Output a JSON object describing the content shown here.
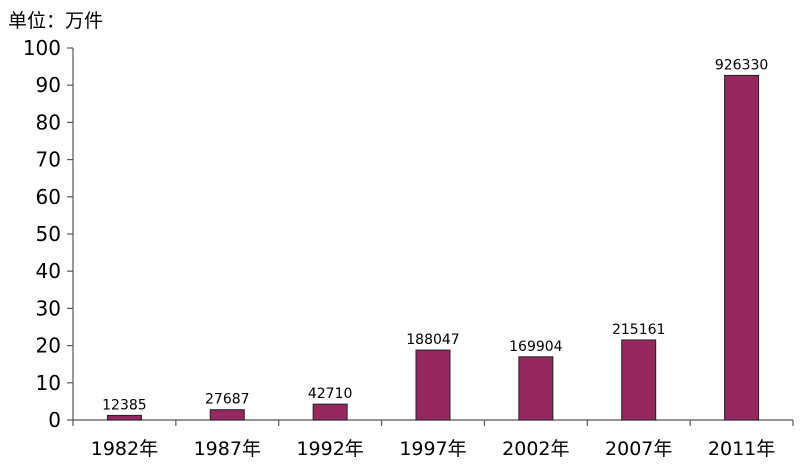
{
  "unit_label": "单位：万件",
  "chart_data": {
    "type": "bar",
    "title": "",
    "xlabel": "",
    "ylabel": "单位：万件",
    "categories": [
      "1982年",
      "1987年",
      "1992年",
      "1997年",
      "2002年",
      "2007年",
      "2011年"
    ],
    "values": [
      1.24,
      2.77,
      4.27,
      18.8,
      16.99,
      21.52,
      92.63
    ],
    "data_labels": [
      "12385",
      "27687",
      "42710",
      "188047",
      "169904",
      "215161",
      "926330"
    ],
    "ylim": [
      0,
      100
    ],
    "yticks": [
      0,
      10,
      20,
      30,
      40,
      50,
      60,
      70,
      80,
      90,
      100
    ],
    "grid": false,
    "bar_color": "#96285e"
  }
}
